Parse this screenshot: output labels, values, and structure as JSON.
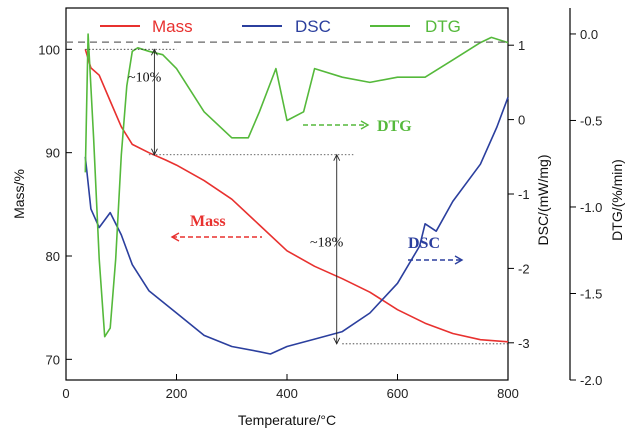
{
  "chart_data": {
    "type": "line",
    "xlabel": "Temperature/°C",
    "xlim": [
      0,
      800
    ],
    "xticks": [
      "0",
      "200",
      "400",
      "600",
      "800"
    ],
    "axes": {
      "mass": {
        "label": "Mass/%",
        "lim": [
          68,
          104
        ],
        "ticks": [
          "70",
          "80",
          "90",
          "100"
        ]
      },
      "dsc": {
        "label": "DSC/(mW/mg)",
        "lim": [
          -3.5,
          1.5
        ],
        "ticks": [
          "-3",
          "-2",
          "-1",
          "0",
          "1"
        ]
      },
      "dtg": {
        "label": "DTG/(%/min)",
        "lim": [
          -2.0,
          0.15
        ],
        "ticks": [
          "-2.0",
          "-1.5",
          "-1.0",
          "-0.5",
          "0.0"
        ]
      }
    },
    "legend": {
      "position": "top",
      "entries": [
        {
          "label": "Mass",
          "color": "#e8312f"
        },
        {
          "label": "DSC",
          "color": "#2b3f9e"
        },
        {
          "label": "DTG",
          "color": "#55b93b"
        }
      ]
    },
    "series": [
      {
        "name": "Mass",
        "axis": "mass",
        "color": "#e8312f",
        "x": [
          35,
          45,
          60,
          80,
          100,
          120,
          150,
          180,
          200,
          250,
          300,
          350,
          400,
          450,
          500,
          550,
          600,
          650,
          700,
          750,
          800
        ],
        "y": [
          100,
          98.2,
          97.5,
          95,
          92.5,
          90.8,
          90,
          89.3,
          88.8,
          87.3,
          85.5,
          83,
          80.5,
          79,
          77.8,
          76.5,
          74.8,
          73.5,
          72.5,
          71.9,
          71.7
        ]
      },
      {
        "name": "DSC",
        "axis": "dsc",
        "color": "#2b3f9e",
        "x": [
          35,
          45,
          60,
          80,
          100,
          120,
          150,
          200,
          250,
          300,
          350,
          370,
          400,
          450,
          500,
          550,
          600,
          640,
          650,
          670,
          700,
          750,
          780,
          800
        ],
        "y": [
          -0.5,
          -1.2,
          -1.45,
          -1.25,
          -1.55,
          -1.95,
          -2.3,
          -2.6,
          -2.9,
          -3.05,
          -3.12,
          -3.15,
          -3.05,
          -2.95,
          -2.85,
          -2.6,
          -2.2,
          -1.7,
          -1.4,
          -1.5,
          -1.1,
          -0.6,
          -0.1,
          0.3
        ]
      },
      {
        "name": "DTG",
        "axis": "dtg",
        "color": "#55b93b",
        "x": [
          35,
          40,
          50,
          60,
          70,
          80,
          90,
          100,
          110,
          120,
          130,
          150,
          175,
          200,
          250,
          300,
          330,
          350,
          380,
          400,
          430,
          450,
          500,
          550,
          600,
          650,
          700,
          750,
          770,
          800
        ],
        "y": [
          -0.8,
          0.0,
          -0.6,
          -1.3,
          -1.75,
          -1.7,
          -1.3,
          -0.7,
          -0.3,
          -0.1,
          -0.08,
          -0.1,
          -0.12,
          -0.2,
          -0.45,
          -0.6,
          -0.6,
          -0.45,
          -0.2,
          -0.5,
          -0.45,
          -0.2,
          -0.25,
          -0.28,
          -0.25,
          -0.25,
          -0.15,
          -0.05,
          -0.02,
          -0.05
        ]
      }
    ],
    "reference_lines": {
      "top_dashed_at_mass": 100.7,
      "mass_level_1": 100,
      "mass_level_2": 89.8,
      "mass_level_3": 71.5
    },
    "annotations": [
      {
        "text": "~10%"
      },
      {
        "text": "~18%"
      },
      {
        "text": "Mass"
      },
      {
        "text": "DSC"
      },
      {
        "text": "DTG"
      }
    ]
  }
}
